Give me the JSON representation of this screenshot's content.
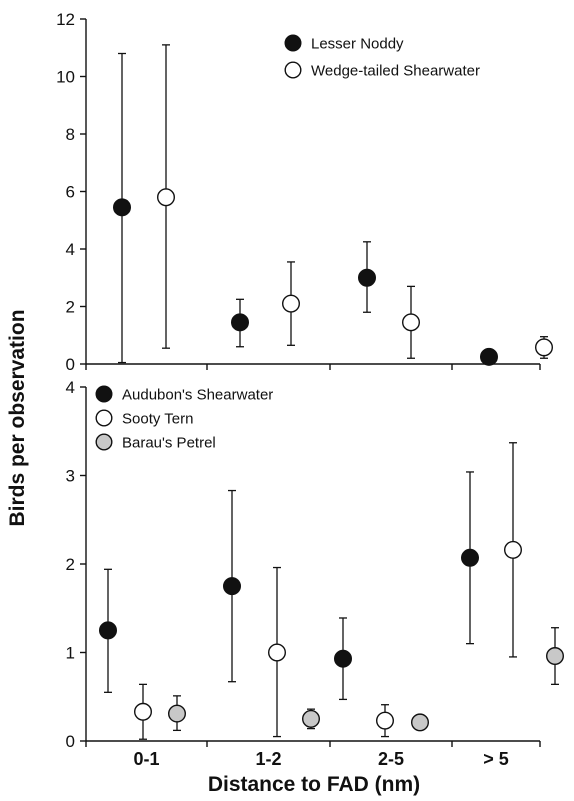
{
  "chart_data": [
    {
      "type": "scatter",
      "title": "",
      "xlabel": "Distance to FAD (nm)",
      "ylabel": "Birds per observation",
      "categories": [
        "0-1",
        "1-2",
        "2-5",
        "> 5"
      ],
      "ylim": [
        0,
        12
      ],
      "yticks": [
        0,
        2,
        4,
        6,
        8,
        10,
        12
      ],
      "grid": false,
      "legend_position": "top-right",
      "series": [
        {
          "name": "Lesser Noddy",
          "fill": "#111111",
          "values": [
            5.45,
            1.45,
            3.0,
            0.25
          ],
          "err_low": [
            0.05,
            0.6,
            1.8,
            0.25
          ],
          "err_high": [
            10.8,
            2.25,
            4.25,
            0.25
          ]
        },
        {
          "name": "Wedge-tailed Shearwater",
          "fill": "#ffffff",
          "values": [
            5.8,
            2.1,
            1.45,
            0.58
          ],
          "err_low": [
            0.55,
            0.65,
            0.2,
            0.2
          ],
          "err_high": [
            11.1,
            3.55,
            2.7,
            0.95
          ]
        }
      ]
    },
    {
      "type": "scatter",
      "title": "",
      "xlabel": "Distance to FAD (nm)",
      "ylabel": "Birds per observation",
      "categories": [
        "0-1",
        "1-2",
        "2-5",
        "> 5"
      ],
      "ylim": [
        0,
        4
      ],
      "yticks": [
        0,
        1,
        2,
        3,
        4
      ],
      "grid": false,
      "legend_position": "top-left",
      "series": [
        {
          "name": "Audubon's Shearwater",
          "fill": "#111111",
          "values": [
            1.25,
            1.75,
            0.93,
            2.07
          ],
          "err_low": [
            0.55,
            0.67,
            0.47,
            1.1
          ],
          "err_high": [
            1.94,
            2.83,
            1.39,
            3.04
          ]
        },
        {
          "name": "Sooty Tern",
          "fill": "#ffffff",
          "values": [
            0.33,
            1.0,
            0.23,
            2.16
          ],
          "err_low": [
            0.02,
            0.05,
            0.05,
            0.95
          ],
          "err_high": [
            0.64,
            1.96,
            0.41,
            3.37
          ]
        },
        {
          "name": "Barau's Petrel",
          "fill": "#c8c8c8",
          "values": [
            0.31,
            0.25,
            0.21,
            0.96
          ],
          "err_low": [
            0.12,
            0.14,
            0.21,
            0.64
          ],
          "err_high": [
            0.51,
            0.36,
            0.21,
            1.28
          ]
        }
      ]
    }
  ]
}
